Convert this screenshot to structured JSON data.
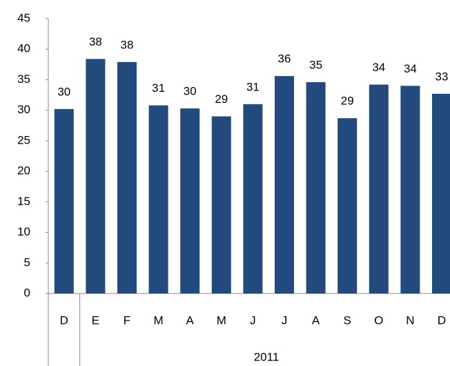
{
  "chart_data": {
    "type": "bar",
    "categories": [
      "D",
      "E",
      "F",
      "M",
      "A",
      "M",
      "J",
      "J",
      "A",
      "S",
      "O",
      "N",
      "D"
    ],
    "values": [
      30.2,
      38.4,
      37.9,
      30.8,
      30.3,
      29.0,
      31.0,
      35.6,
      34.6,
      28.7,
      34.2,
      34.0,
      32.7
    ],
    "value_labels": [
      "30",
      "38",
      "38",
      "31",
      "30",
      "29",
      "31",
      "36",
      "35",
      "29",
      "34",
      "34",
      "33"
    ],
    "group_label": "2011",
    "color": "#234a7c",
    "ylim": [
      0,
      45
    ],
    "yticks": [
      0,
      5,
      10,
      15,
      20,
      25,
      30,
      35,
      40,
      45
    ],
    "grid": false
  }
}
